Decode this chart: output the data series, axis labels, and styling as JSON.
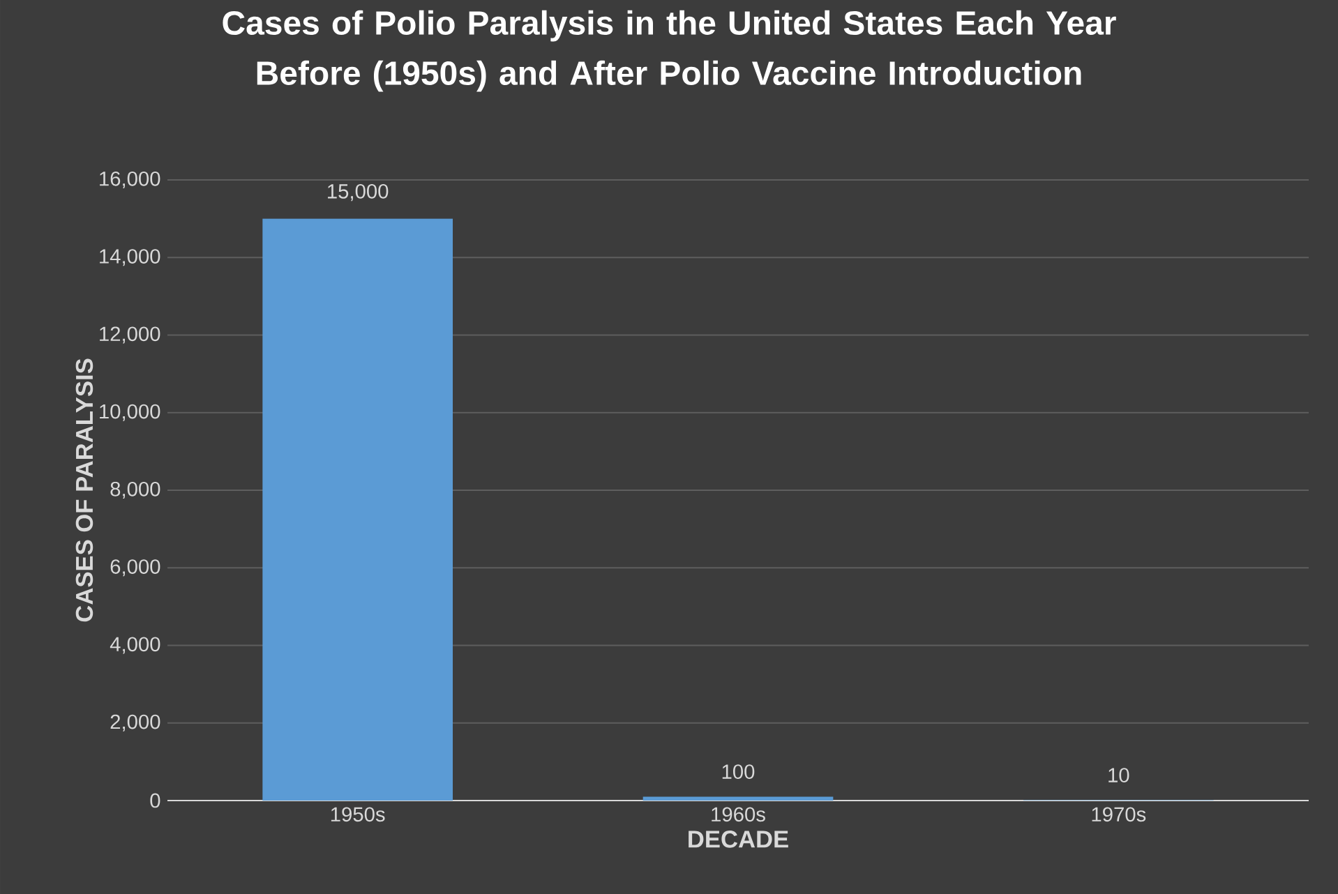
{
  "chart_data": {
    "type": "bar",
    "title": "Cases of Polio Paralysis in the United States Each Year Before (1950s) and After Polio Vaccine Introduction",
    "xlabel": "DECADE",
    "ylabel": "CASES OF PARALYSIS",
    "categories": [
      "1950s",
      "1960s",
      "1970s"
    ],
    "values": [
      15000,
      100,
      10
    ],
    "value_labels": [
      "15,000",
      "100",
      "10"
    ],
    "color": "#5b9bd5",
    "ylim": [
      0,
      16000
    ],
    "yticks": [
      {
        "value": 0,
        "label": "0"
      },
      {
        "value": 2000,
        "label": "2,000"
      },
      {
        "value": 4000,
        "label": "4,000"
      },
      {
        "value": 6000,
        "label": "6,000"
      },
      {
        "value": 8000,
        "label": "8,000"
      },
      {
        "value": 10000,
        "label": "10,000"
      },
      {
        "value": 12000,
        "label": "12,000"
      },
      {
        "value": 14000,
        "label": "14,000"
      },
      {
        "value": 16000,
        "label": "16,000"
      }
    ],
    "grid": "y"
  }
}
